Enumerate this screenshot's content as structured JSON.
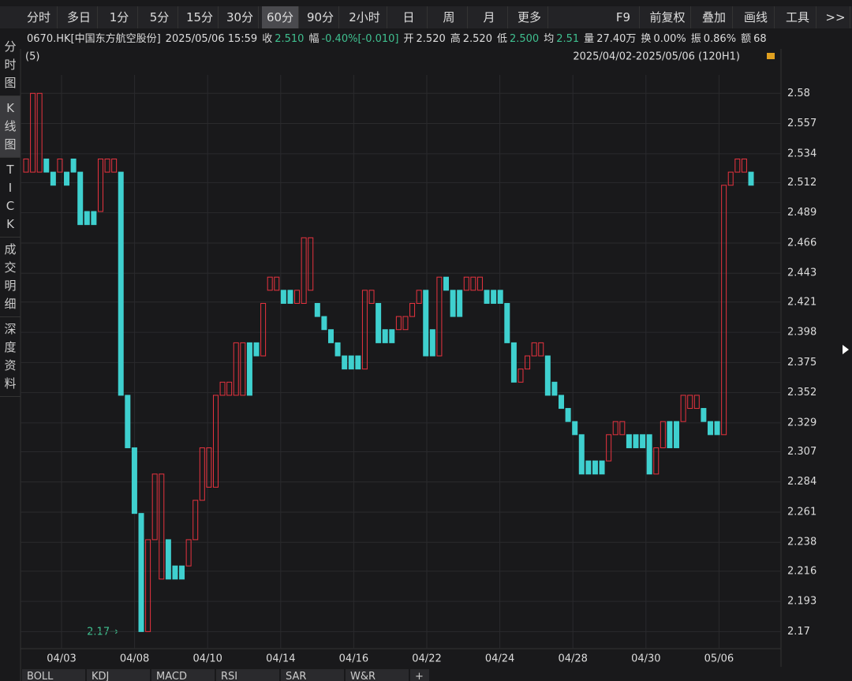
{
  "toolbar": {
    "left": [
      "分时",
      "多日",
      "1分",
      "5分",
      "15分",
      "30分",
      "60分",
      "90分",
      "2小时",
      "日",
      "周",
      "月",
      "更多"
    ],
    "selected": 6,
    "right": [
      "F9",
      "前复权",
      "叠加",
      "画线",
      "工具",
      ">>"
    ]
  },
  "info": {
    "symbol": "0670.HK[中国东方航空股份]",
    "time": "2025/05/06 15:59",
    "items": [
      [
        "收",
        "2.510"
      ],
      [
        "幅",
        "-0.40%[-0.010]"
      ],
      [
        "开",
        "2.520"
      ],
      [
        "高",
        "2.520"
      ],
      [
        "低",
        "2.500"
      ],
      [
        "均",
        "2.51"
      ],
      [
        "量",
        "27.40万"
      ],
      [
        "换",
        "0.00%"
      ],
      [
        "振",
        "0.86%"
      ],
      [
        "额",
        "68"
      ]
    ]
  },
  "sidebar": [
    "分时图",
    "K线图",
    "TICK",
    "成交明细",
    "深度资料"
  ],
  "bottom_tabs": [
    "BOLL",
    "KDJ",
    "MACD",
    "RSI",
    "SAR",
    "W&R",
    "+"
  ],
  "chart_data": {
    "type": "candlestick",
    "subtitle": "(5)",
    "range_label": "2025/04/02-2025/05/06 (120H1)",
    "annotation": "2.17→",
    "up_color": "#e8333f",
    "down_color": "#3fd0cf",
    "categories": [
      "04/03",
      "04/08",
      "04/10",
      "04/14",
      "04/16",
      "04/22",
      "04/24",
      "04/28",
      "04/30",
      "05/06"
    ],
    "open": [
      2.52,
      2.52,
      2.52,
      2.53,
      2.52,
      2.52,
      2.52,
      2.53,
      2.52,
      2.49,
      2.49,
      2.49,
      2.52,
      2.52,
      2.52,
      2.35,
      2.31,
      2.26,
      2.17,
      2.24,
      2.21,
      2.24,
      2.22,
      2.22,
      2.22,
      2.24,
      2.27,
      2.28,
      2.28,
      2.35,
      2.35,
      2.35,
      2.35,
      2.39,
      2.39,
      2.38,
      2.43,
      2.43,
      2.43,
      2.43,
      2.42,
      2.42,
      2.43,
      2.42,
      2.41,
      2.4,
      2.39,
      2.38,
      2.38,
      2.38,
      2.37,
      2.42,
      2.42,
      2.4,
      2.4,
      2.4,
      2.4,
      2.41,
      2.42,
      2.43,
      2.4,
      2.38,
      2.44,
      2.43,
      2.43,
      2.43,
      2.43,
      2.43,
      2.43,
      2.43,
      2.43,
      2.42,
      2.39,
      2.36,
      2.37,
      2.38,
      2.38,
      2.38,
      2.36,
      2.35,
      2.34,
      2.33,
      2.32,
      2.3,
      2.3,
      2.3,
      2.3,
      2.32,
      2.32,
      2.32,
      2.32,
      2.32,
      2.32,
      2.29,
      2.31,
      2.33,
      2.33,
      2.33,
      2.34,
      2.34,
      2.34,
      2.33,
      2.33,
      2.32,
      2.51,
      2.52,
      2.52,
      2.52
    ],
    "close": [
      2.53,
      2.58,
      2.58,
      2.52,
      2.51,
      2.53,
      2.51,
      2.52,
      2.48,
      2.48,
      2.48,
      2.53,
      2.53,
      2.53,
      2.35,
      2.31,
      2.26,
      2.17,
      2.24,
      2.29,
      2.29,
      2.21,
      2.21,
      2.21,
      2.24,
      2.27,
      2.31,
      2.31,
      2.35,
      2.36,
      2.36,
      2.39,
      2.39,
      2.35,
      2.38,
      2.42,
      2.44,
      2.44,
      2.42,
      2.42,
      2.43,
      2.47,
      2.47,
      2.41,
      2.4,
      2.39,
      2.38,
      2.37,
      2.37,
      2.37,
      2.43,
      2.43,
      2.39,
      2.39,
      2.39,
      2.41,
      2.41,
      2.42,
      2.43,
      2.38,
      2.38,
      2.44,
      2.43,
      2.41,
      2.41,
      2.44,
      2.44,
      2.44,
      2.42,
      2.42,
      2.42,
      2.39,
      2.36,
      2.37,
      2.38,
      2.39,
      2.39,
      2.35,
      2.35,
      2.34,
      2.33,
      2.32,
      2.29,
      2.29,
      2.29,
      2.29,
      2.32,
      2.33,
      2.33,
      2.31,
      2.31,
      2.31,
      2.29,
      2.31,
      2.33,
      2.31,
      2.31,
      2.35,
      2.35,
      2.35,
      2.33,
      2.32,
      2.32,
      2.51,
      2.52,
      2.53,
      2.53,
      2.51
    ],
    "ylim": [
      2.157,
      2.594
    ],
    "yticks": [
      2.58,
      2.557,
      2.534,
      2.512,
      2.489,
      2.466,
      2.443,
      2.421,
      2.398,
      2.375,
      2.352,
      2.329,
      2.307,
      2.284,
      2.261,
      2.238,
      2.216,
      2.193,
      2.17
    ],
    "grid": true
  }
}
